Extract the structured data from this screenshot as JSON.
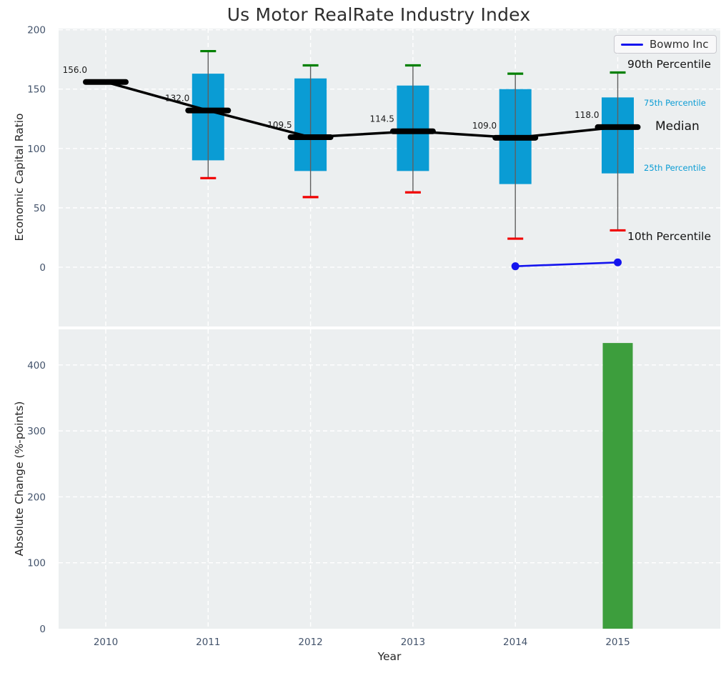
{
  "title": "Us Motor RealRate Industry Index",
  "legend": {
    "label": "Bowmo Inc"
  },
  "right_labels": {
    "p90": "90th Percentile",
    "p75": "75th Percentile",
    "median": "Median",
    "p25": "25th Percentile",
    "p10": "10th Percentile"
  },
  "colors": {
    "background": "#ffffff",
    "plot_background": "#eceff0",
    "grid": "#ffffff",
    "box_fill": "#0a9cd4",
    "p90_cap": "#008000",
    "p10_cap": "#f10000",
    "median_line": "#000000",
    "whisker": "#606060",
    "bowmo_line": "#1414ee",
    "bar_fill": "#3d9e3d",
    "tick_label": "#43536b",
    "annotation": "#1a1a1a",
    "percentile_small_label": "#0a9cd4"
  },
  "chart_data": [
    {
      "type": "boxplot+line",
      "panel": "top",
      "ylabel": "Economic Capital Ratio",
      "ylim": [
        -50,
        201
      ],
      "yticks": [
        0,
        50,
        100,
        150,
        200
      ],
      "grid": true,
      "categories": [
        2010,
        2011,
        2012,
        2013,
        2014,
        2015
      ],
      "boxes": [
        {
          "year": 2010,
          "median": 156.0,
          "p10": null,
          "q1": null,
          "q3": null,
          "p90": null
        },
        {
          "year": 2011,
          "median": 132.0,
          "p10": 75,
          "q1": 90,
          "q3": 163,
          "p90": 182
        },
        {
          "year": 2012,
          "median": 109.5,
          "p10": 59,
          "q1": 81,
          "q3": 159,
          "p90": 170
        },
        {
          "year": 2013,
          "median": 114.5,
          "p10": 63,
          "q1": 81,
          "q3": 153,
          "p90": 170
        },
        {
          "year": 2014,
          "median": 109.0,
          "p10": 24,
          "q1": 70,
          "q3": 150,
          "p90": 163
        },
        {
          "year": 2015,
          "median": 118.0,
          "p10": 31,
          "q1": 79,
          "q3": 143,
          "p90": 164
        }
      ],
      "median_annotations": [
        "156.0",
        "132.0",
        "109.5",
        "114.5",
        "109.0",
        "118.0"
      ],
      "series": [
        {
          "name": "Bowmo Inc",
          "x": [
            2014,
            2015
          ],
          "values": [
            0.75,
            4.0
          ]
        }
      ],
      "legend_position": "upper right"
    },
    {
      "type": "bar",
      "panel": "bottom",
      "ylabel": "Absolute Change (%-points)",
      "xlabel": "Year",
      "ylim": [
        0,
        454
      ],
      "yticks": [
        0,
        100,
        200,
        300,
        400
      ],
      "grid": true,
      "categories": [
        2010,
        2011,
        2012,
        2013,
        2014,
        2015
      ],
      "values": [
        null,
        null,
        null,
        null,
        null,
        433.3
      ]
    }
  ]
}
